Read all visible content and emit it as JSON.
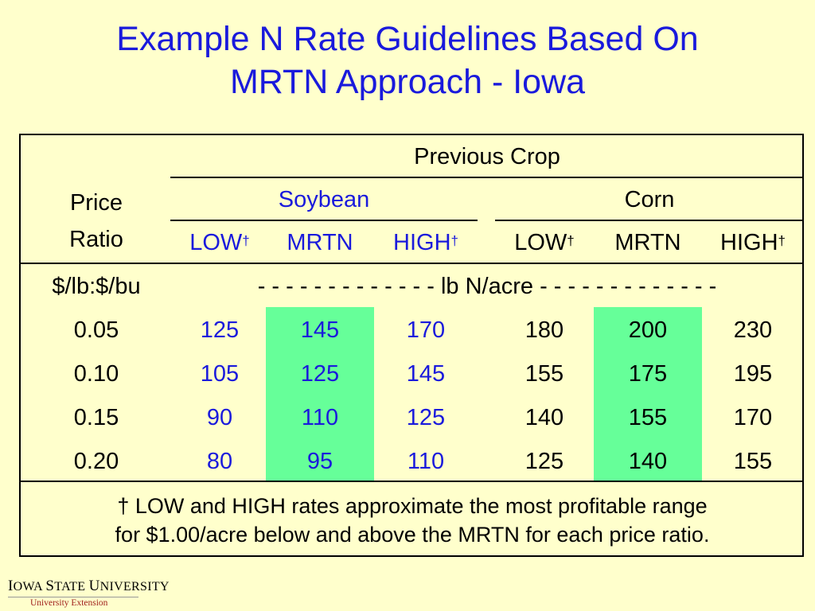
{
  "title": {
    "line1": "Example N Rate Guidelines Based On",
    "line2": "MRTN Approach - Iowa"
  },
  "table": {
    "previous_crop_label": "Previous Crop",
    "price_ratio_label_line1": "Price",
    "price_ratio_label_line2": "Ratio",
    "groups": [
      {
        "name": "Soybean",
        "columns": [
          "LOW",
          "MRTN",
          "HIGH"
        ]
      },
      {
        "name": "Corn",
        "columns": [
          "LOW",
          "MRTN",
          "HIGH"
        ]
      }
    ],
    "dagger": "†",
    "units_left": "$/lb:$/bu",
    "units_right": "- - - - - - - - - - - - - lb N/acre - - - - - - - - - - - - -",
    "rows": [
      {
        "ratio": "0.05",
        "values": [
          "125",
          "145",
          "170",
          "180",
          "200",
          "230"
        ]
      },
      {
        "ratio": "0.10",
        "values": [
          "105",
          "125",
          "145",
          "155",
          "175",
          "195"
        ]
      },
      {
        "ratio": "0.15",
        "values": [
          "90",
          "110",
          "125",
          "140",
          "155",
          "170"
        ]
      },
      {
        "ratio": "0.20",
        "values": [
          "80",
          "95",
          "110",
          "125",
          "140",
          "155"
        ]
      }
    ],
    "highlight_color": "#66ff99",
    "footnote_line1": "† LOW and HIGH rates approximate the most profitable range",
    "footnote_line2": "for $1.00/acre below and above the MRTN for each price ratio."
  },
  "logo": {
    "name_part1": "I",
    "name_part2": "OWA ",
    "name_part3": "S",
    "name_part4": "TATE ",
    "name_part5": "U",
    "name_part6": "NIVERSITY",
    "extension": "University Extension"
  },
  "colors": {
    "background": "#ffffcc",
    "title": "#1a1adc",
    "soybean_text": "#1a1adc"
  }
}
